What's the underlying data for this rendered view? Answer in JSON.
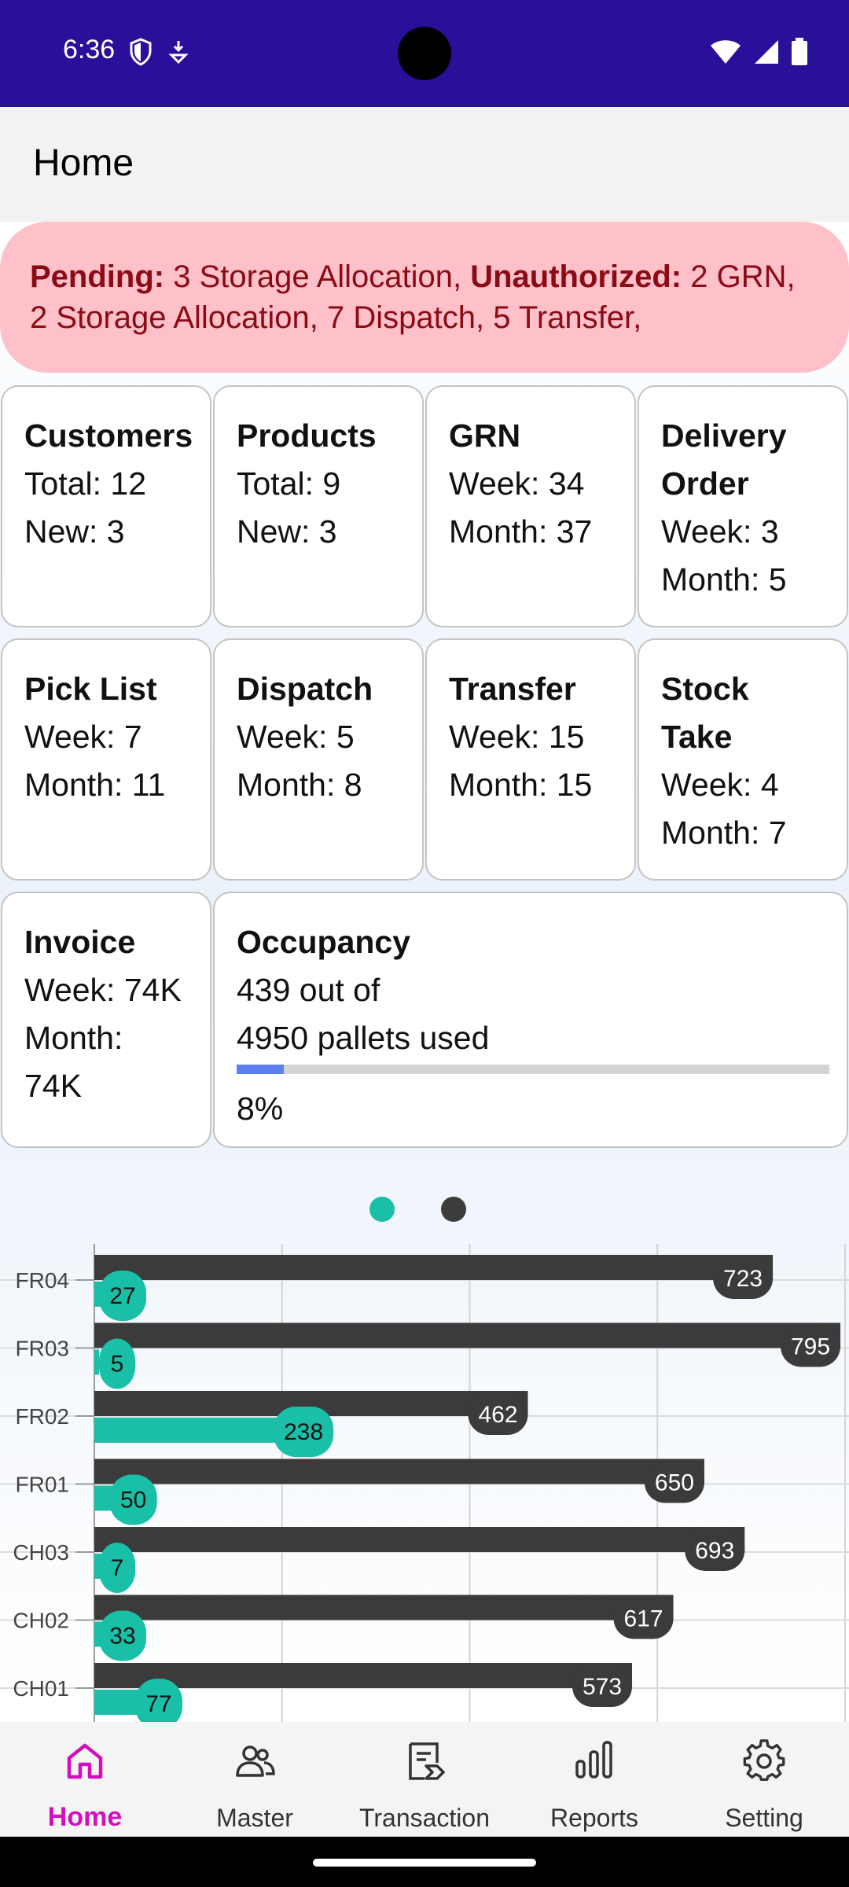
{
  "status_bar": {
    "time": "6:36"
  },
  "app_bar": {
    "title": "Home"
  },
  "pending": {
    "pending_label": "Pending:",
    "pending_text": " 3 Storage Allocation, ",
    "unauth_label": "Unauthorized:",
    "unauth_text": " 2 GRN, 2 Storage Allocation, 7 Dispatch, 5 Transfer,"
  },
  "cards": {
    "customers": {
      "title": "Customers",
      "line1": "Total: 12",
      "line2": "New: 3"
    },
    "products": {
      "title": "Products",
      "line1": "Total: 9",
      "line2": "New: 3"
    },
    "grn": {
      "title": "GRN",
      "line1": "Week: 34",
      "line2": "Month: 37"
    },
    "delivery_order": {
      "title": "Delivery Order",
      "line1": "Week: 3",
      "line2": "Month: 5"
    },
    "pick_list": {
      "title": "Pick List",
      "line1": "Week: 7",
      "line2": "Month: 11"
    },
    "dispatch": {
      "title": "Dispatch",
      "line1": "Week: 5",
      "line2": "Month: 8"
    },
    "transfer": {
      "title": "Transfer",
      "line1": "Week: 15",
      "line2": "Month: 15"
    },
    "stock_take": {
      "title": "Stock Take",
      "line1": "Week: 4",
      "line2": "Month: 7"
    },
    "invoice": {
      "title": "Invoice",
      "line1": "Week: 74K",
      "line2": "Month: 74K"
    },
    "occupancy": {
      "title": "Occupancy",
      "line1": "439 out of",
      "line2": "4950 pallets used",
      "percent_label": "8%",
      "fraction": 0.08
    }
  },
  "pager": {
    "pages": 2,
    "active": 0,
    "active_color": "#19bfa7",
    "inactive_color": "#3c3c3c"
  },
  "colors": {
    "bar_dark": "#3b3b3b",
    "bar_teal": "#19bfa7",
    "nav_active": "#d10fbd"
  },
  "chart_data": {
    "type": "bar",
    "orientation": "horizontal",
    "categories": [
      "FR04",
      "FR03",
      "FR02",
      "FR01",
      "CH03",
      "CH02",
      "CH01"
    ],
    "series": [
      {
        "values": [
          723,
          795,
          462,
          650,
          693,
          617,
          573
        ]
      },
      {
        "values": [
          27,
          5,
          238,
          50,
          7,
          33,
          77
        ]
      }
    ],
    "xlim": [
      0,
      800
    ],
    "grid": true
  },
  "nav": {
    "items": [
      {
        "label": "Home",
        "icon": "home-icon"
      },
      {
        "label": "Master",
        "icon": "users-icon"
      },
      {
        "label": "Transaction",
        "icon": "receipt-icon"
      },
      {
        "label": "Reports",
        "icon": "bar-chart-icon"
      },
      {
        "label": "Setting",
        "icon": "gear-icon"
      }
    ]
  }
}
